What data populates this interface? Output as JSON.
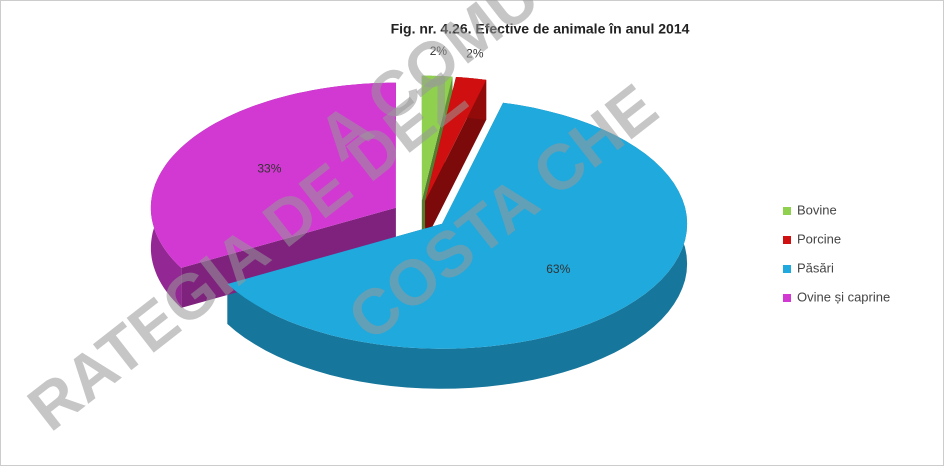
{
  "chart_data": {
    "type": "pie3d",
    "title": "Fig. nr. 4.26. Efective de animale în anul 2014",
    "categories": [
      "Bovine",
      "Porcine",
      "Păsări",
      "Ovine și caprine"
    ],
    "values": [
      2,
      2,
      63,
      33
    ],
    "value_labels": [
      "2%",
      "2%",
      "63%",
      "33%"
    ],
    "colors": [
      "#8fd14f",
      "#d01010",
      "#1fa9dd",
      "#d238d2"
    ],
    "legend": "right"
  },
  "watermark": [
    "RATEGIA DE DEZ",
    "A COMU",
    "COSTA CHE"
  ]
}
